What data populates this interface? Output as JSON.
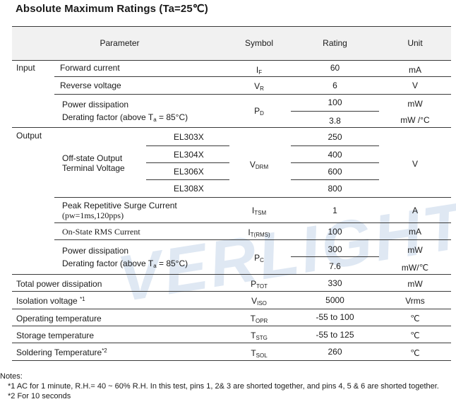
{
  "title": "Absolute Maximum Ratings (Ta=25℃)",
  "watermark": "VERLIGHT",
  "header": {
    "parameter": "Parameter",
    "symbol": "Symbol",
    "rating": "Rating",
    "unit": "Unit"
  },
  "input": {
    "group": "Input",
    "forward_current": {
      "label": "Forward current",
      "symbol": "I",
      "symbol_sub": "F",
      "rating": "60",
      "unit": "mA"
    },
    "reverse_voltage": {
      "label": "Reverse voltage",
      "symbol": "V",
      "symbol_sub": "R",
      "rating": "6",
      "unit": "V"
    },
    "power": {
      "label": "Power dissipation",
      "rating": "100",
      "unit": "mW",
      "symbol": "P",
      "symbol_sub": "D",
      "derating_label_a": "Derating factor (above T",
      "derating_sub": "a",
      "derating_label_b": " = 85°C)",
      "derating_rating": "3.8",
      "derating_unit": "mW /°C"
    }
  },
  "output": {
    "group": "Output",
    "offstate_label_1": "Off-state Output",
    "offstate_label_2": "Terminal Voltage",
    "offstate_symbol": "V",
    "offstate_symbol_sub": "DRM",
    "offstate_unit": "V",
    "models": [
      {
        "name": "EL303X",
        "rating": "250"
      },
      {
        "name": "EL304X",
        "rating": "400"
      },
      {
        "name": "EL306X",
        "rating": "600"
      },
      {
        "name": "EL308X",
        "rating": "800"
      }
    ],
    "surge": {
      "label": "Peak Repetitive Surge Current",
      "sublabel": "(pw=1ms,120pps)",
      "symbol": "I",
      "symbol_sub": "TSM",
      "rating": "1",
      "unit": "A"
    },
    "rms": {
      "label": "On-State RMS Current",
      "symbol": "I",
      "symbol_sub": "T(RMS)",
      "rating": "100",
      "unit": "mA"
    },
    "power": {
      "label": "Power dissipation",
      "rating": "300",
      "unit": "mW",
      "symbol": "P",
      "symbol_sub": "C",
      "derating_label_a": "Derating factor (above T",
      "derating_sub": "a",
      "derating_label_b": " = 85°C)",
      "derating_rating": "7.6",
      "derating_unit": "mW/℃"
    }
  },
  "rows": {
    "total_power": {
      "label": "Total power dissipation",
      "symbol": "P",
      "symbol_sub": "TOT",
      "rating": "330",
      "unit": "mW"
    },
    "isolation": {
      "label": "Isolation voltage ",
      "note": "*1",
      "symbol": "V",
      "symbol_sub": "ISO",
      "rating": "5000",
      "unit": "Vrms"
    },
    "operating": {
      "label": "Operating temperature",
      "symbol": "T",
      "symbol_sub": "OPR",
      "rating": "-55 to 100",
      "unit": "℃"
    },
    "storage": {
      "label": "Storage temperature",
      "symbol": "T",
      "symbol_sub": "STG",
      "rating": "-55 to 125",
      "unit": "℃"
    },
    "soldering": {
      "label": "Soldering Temperature",
      "note": "*2",
      "symbol": "T",
      "symbol_sub": "SOL",
      "rating": "260",
      "unit": "℃"
    }
  },
  "notes": {
    "heading": "Notes:",
    "note1": "*1 AC for 1 minute, R.H.= 40 ~ 60% R.H. In this test, pins 1, 2& 3 are shorted together, and pins 4, 5 & 6 are shorted together.",
    "note2": "*2 For 10 seconds"
  }
}
